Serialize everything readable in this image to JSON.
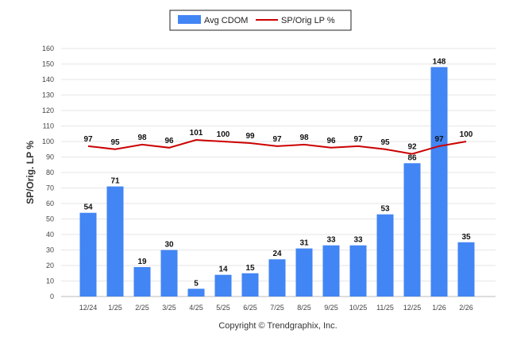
{
  "chart_data": {
    "type": "bar",
    "categories": [
      "12/24",
      "1/25",
      "2/25",
      "3/25",
      "4/25",
      "5/25",
      "6/25",
      "7/25",
      "8/25",
      "9/25",
      "10/25",
      "11/25",
      "12/25",
      "1/26",
      "2/26"
    ],
    "series": [
      {
        "name": "Avg CDOM",
        "type": "bar",
        "color": "#4285f4",
        "values": [
          54,
          71,
          19,
          30,
          5,
          14,
          15,
          24,
          31,
          33,
          33,
          53,
          86,
          148,
          35
        ]
      },
      {
        "name": "SP/Orig LP %",
        "type": "line",
        "color": "#cc0000",
        "values": [
          97,
          95,
          98,
          96,
          101,
          100,
          99,
          97,
          98,
          96,
          97,
          95,
          92,
          97,
          100
        ]
      }
    ],
    "ylabel": "SP/Orig. LP %",
    "yticks": [
      0,
      10,
      20,
      30,
      40,
      50,
      60,
      70,
      80,
      90,
      100,
      110,
      120,
      130,
      140,
      150,
      160
    ],
    "ylim": [
      0,
      160
    ],
    "grid": true,
    "legend_position": "top-center"
  },
  "footer": {
    "copyright": "Copyright © Trendgraphix, Inc."
  }
}
